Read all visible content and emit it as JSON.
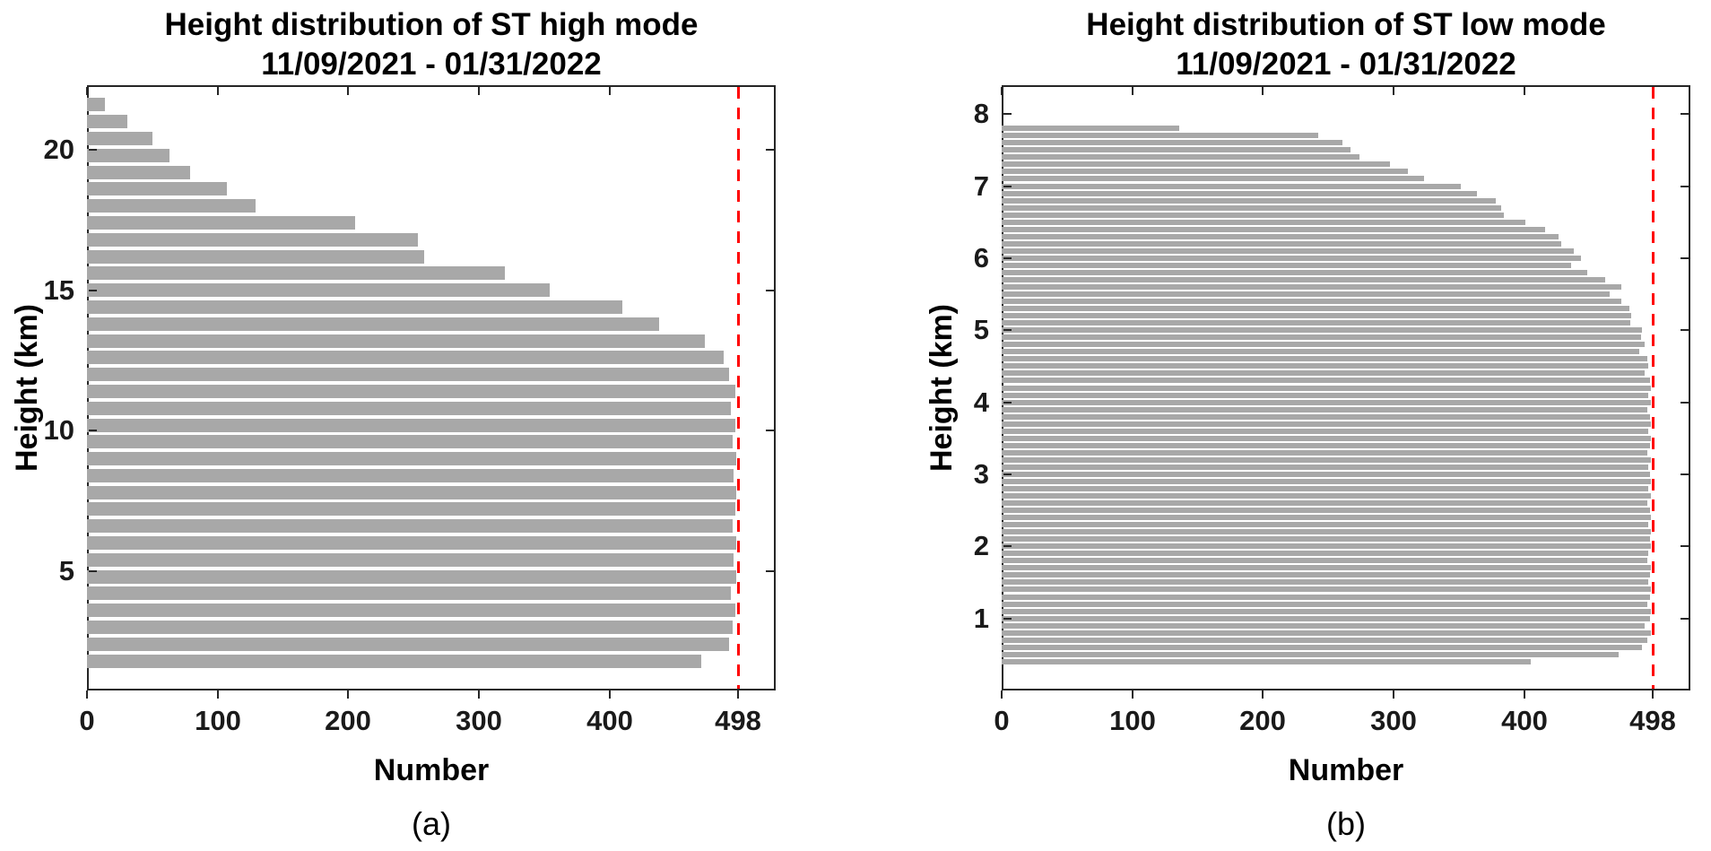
{
  "page": {
    "background": "#ffffff"
  },
  "chart_data": [
    {
      "type": "bar",
      "orientation": "horizontal",
      "title": "Height distribution of ST high mode",
      "subtitle": "11/09/2021 - 01/31/2022",
      "xlabel": "Number",
      "ylabel": "Height (km)",
      "panel_label": "(a)",
      "bar_color": "#a8a8a8",
      "axis_color": "#262626",
      "grid": false,
      "xlim": [
        0,
        527
      ],
      "ylim": [
        0.75,
        22.3
      ],
      "x_tick_labels": [
        "0",
        "100",
        "200",
        "300",
        "400",
        "498"
      ],
      "x_tick_values": [
        0,
        100,
        200,
        300,
        400,
        498
      ],
      "y_tick_labels": [
        "5",
        "10",
        "15",
        "20"
      ],
      "y_tick_values": [
        5,
        10,
        15,
        20
      ],
      "reference_line": {
        "value": 498,
        "color": "#ff0000",
        "style": "dashed"
      },
      "heights_km": [
        1.8,
        2.4,
        3.0,
        3.6,
        4.2,
        4.8,
        5.4,
        6.0,
        6.6,
        7.2,
        7.8,
        8.4,
        9.0,
        9.6,
        10.2,
        10.8,
        11.4,
        12.0,
        12.6,
        13.2,
        13.8,
        14.4,
        15.0,
        15.6,
        16.2,
        16.8,
        17.4,
        18.0,
        18.6,
        19.2,
        19.8,
        20.4,
        21.0,
        21.6
      ],
      "values": [
        470,
        491,
        494,
        496,
        493,
        497,
        495,
        497,
        494,
        496,
        497,
        495,
        497,
        494,
        496,
        493,
        496,
        491,
        487,
        473,
        438,
        410,
        354,
        320,
        258,
        253,
        205,
        129,
        107,
        79,
        63,
        50,
        31,
        14
      ]
    },
    {
      "type": "bar",
      "orientation": "horizontal",
      "title": "Height distribution of ST low mode",
      "subtitle": "11/09/2021 - 01/31/2022",
      "xlabel": "Number",
      "ylabel": "Height (km)",
      "panel_label": "(b)",
      "bar_color": "#a8a8a8",
      "axis_color": "#262626",
      "grid": false,
      "xlim": [
        0,
        527
      ],
      "ylim": [
        0,
        8.4
      ],
      "x_tick_labels": [
        "0",
        "100",
        "200",
        "300",
        "400",
        "498"
      ],
      "x_tick_values": [
        0,
        100,
        200,
        300,
        400,
        498
      ],
      "y_tick_labels": [
        "1",
        "2",
        "3",
        "4",
        "5",
        "6",
        "7",
        "8"
      ],
      "y_tick_values": [
        1,
        2,
        3,
        4,
        5,
        6,
        7,
        8
      ],
      "reference_line": {
        "value": 498,
        "color": "#ff0000",
        "style": "dashed"
      },
      "heights_km": [
        0.4,
        0.5,
        0.6,
        0.7,
        0.8,
        0.9,
        1.0,
        1.1,
        1.2,
        1.3,
        1.4,
        1.5,
        1.6,
        1.7,
        1.8,
        1.9,
        2.0,
        2.1,
        2.2,
        2.3,
        2.4,
        2.5,
        2.6,
        2.7,
        2.8,
        2.9,
        3.0,
        3.1,
        3.2,
        3.3,
        3.4,
        3.5,
        3.6,
        3.7,
        3.8,
        3.9,
        4.0,
        4.1,
        4.2,
        4.3,
        4.4,
        4.5,
        4.6,
        4.7,
        4.8,
        4.9,
        5.0,
        5.1,
        5.2,
        5.3,
        5.4,
        5.5,
        5.6,
        5.7,
        5.8,
        5.9,
        6.0,
        6.1,
        6.2,
        6.3,
        6.4,
        6.5,
        6.6,
        6.7,
        6.8,
        6.9,
        7.0,
        7.1,
        7.2,
        7.3,
        7.4,
        7.5,
        7.6,
        7.7,
        7.8
      ],
      "values": [
        405,
        472,
        490,
        494,
        497,
        492,
        496,
        497,
        494,
        496,
        497,
        495,
        496,
        497,
        494,
        495,
        497,
        496,
        497,
        495,
        497,
        496,
        494,
        497,
        495,
        497,
        496,
        495,
        497,
        494,
        496,
        497,
        495,
        497,
        496,
        494,
        497,
        495,
        497,
        496,
        492,
        495,
        494,
        488,
        492,
        489,
        490,
        481,
        482,
        480,
        474,
        465,
        474,
        462,
        448,
        436,
        443,
        438,
        428,
        426,
        416,
        401,
        384,
        382,
        378,
        364,
        351,
        323,
        311,
        297,
        274,
        267,
        261,
        242,
        136
      ]
    }
  ]
}
